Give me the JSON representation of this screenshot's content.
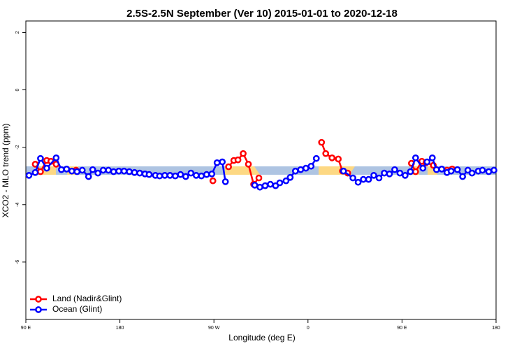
{
  "chart_data": {
    "type": "line",
    "title": "2.5S-2.5N September (Ver 10)   2015-01-01 to 2020-12-18",
    "x_label": "Longitude (deg E)",
    "y_label": "XCO2 - MLO trend (ppm)",
    "xlim": [
      90,
      540
    ],
    "ylim": [
      -8.0,
      2.4
    ],
    "xticks": [
      {
        "value": 90,
        "label": "90 E"
      },
      180,
      {
        "value": 270,
        "label": "90 W"
      },
      {
        "value": 360,
        "label": "0"
      },
      {
        "value": 450,
        "label": "90 E"
      },
      {
        "value": 540,
        "label": "180"
      }
    ],
    "yticks": [
      -6,
      -4,
      -2,
      0,
      2
    ],
    "legend": "bottom-left",
    "series": [
      {
        "name": "Land (Nadir&Glint)",
        "color": "#ff0000",
        "x": [
          99,
          104,
          110,
          114,
          119,
          130,
          138,
          200,
          269,
          275,
          284,
          289,
          293,
          298,
          303,
          308,
          313,
          340,
          373,
          377,
          383,
          389,
          393,
          398,
          430,
          459,
          463,
          469,
          473,
          480,
          490,
          493,
          498
        ],
        "values": [
          -2.59,
          -2.85,
          -2.46,
          -2.49,
          -2.59,
          null,
          -2.8,
          null,
          -3.17,
          null,
          -2.68,
          -2.46,
          -2.44,
          -2.22,
          -2.59,
          -3.29,
          -3.07,
          null,
          -1.83,
          -2.22,
          -2.37,
          -2.41,
          -2.83,
          -2.9,
          null,
          -2.56,
          -2.85,
          -2.49,
          -2.54,
          -2.63,
          null,
          -2.8,
          -2.76
        ]
      },
      {
        "name": "Ocean (Glint)",
        "color": "#0000ff",
        "x": [
          93,
          99,
          104,
          110,
          119,
          124,
          129,
          134,
          139,
          144,
          150,
          154,
          159,
          164,
          169,
          174,
          179,
          184,
          189,
          194,
          199,
          204,
          208,
          214,
          218,
          223,
          228,
          233,
          238,
          243,
          248,
          253,
          258,
          263,
          268,
          273,
          278,
          281,
          295,
          309,
          314,
          319,
          324,
          329,
          333,
          339,
          343,
          348,
          353,
          358,
          363,
          368,
          380,
          394,
          403,
          408,
          413,
          418,
          423,
          428,
          433,
          438,
          443,
          448,
          453,
          458,
          463,
          470,
          474,
          479,
          483,
          488,
          493,
          497,
          503,
          508,
          513,
          517,
          523,
          527,
          533,
          538
        ],
        "values": [
          -2.98,
          -2.88,
          -2.39,
          -2.73,
          -2.37,
          -2.78,
          -2.76,
          -2.83,
          -2.85,
          -2.8,
          -3.02,
          -2.78,
          -2.9,
          -2.8,
          -2.8,
          -2.85,
          -2.83,
          -2.83,
          -2.85,
          -2.88,
          -2.9,
          -2.93,
          -2.95,
          -2.98,
          -3.0,
          -2.98,
          -2.98,
          -3.0,
          -2.95,
          -3.02,
          -2.9,
          -2.98,
          -3.0,
          -2.95,
          -2.93,
          -2.54,
          -2.51,
          -3.2,
          null,
          -3.32,
          -3.39,
          -3.34,
          -3.29,
          -3.34,
          -3.24,
          -3.17,
          -3.05,
          -2.83,
          -2.78,
          -2.73,
          -2.66,
          -2.39,
          null,
          -2.83,
          -3.07,
          -3.22,
          -3.12,
          -3.12,
          -2.98,
          -3.07,
          -2.9,
          -2.93,
          -2.78,
          -2.9,
          -2.98,
          -2.85,
          -2.37,
          -2.73,
          -2.51,
          -2.37,
          -2.78,
          -2.76,
          -2.88,
          -2.83,
          -2.78,
          -3.02,
          -2.8,
          -2.9,
          -2.83,
          -2.8,
          -2.85,
          -2.8
        ]
      }
    ]
  }
}
